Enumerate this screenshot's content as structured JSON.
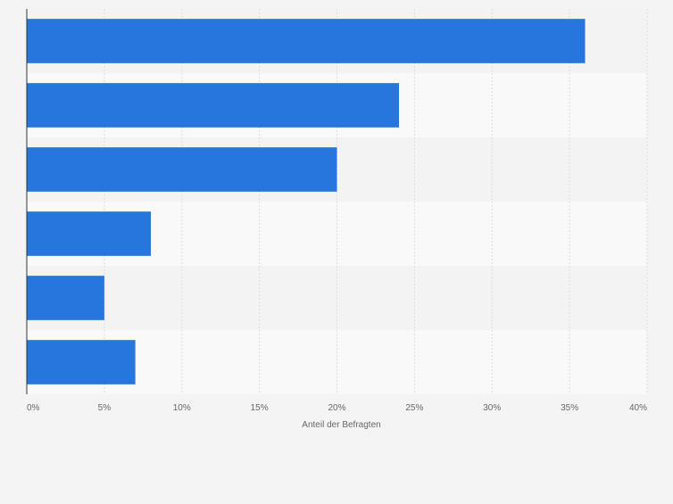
{
  "chart_data": {
    "type": "bar",
    "orientation": "horizontal",
    "categories": [
      "",
      "",
      "",
      "",
      "",
      ""
    ],
    "values": [
      36,
      24,
      20,
      8,
      5,
      7
    ],
    "xlim": [
      0,
      40
    ],
    "xticks": [
      0,
      5,
      10,
      15,
      20,
      25,
      30,
      35,
      40
    ],
    "tick_labels": [
      "0%",
      "5%",
      "10%",
      "15%",
      "20%",
      "25%",
      "30%",
      "35%",
      "40%"
    ],
    "xlabel": "Anteil der Befragten",
    "grid": true,
    "legend": "none",
    "colors": {
      "bar": "#2776dd",
      "band_odd": "#f3f3f3",
      "band_even": "#f9f9f9",
      "grid": "#dcdcdc",
      "axis": "#333333",
      "text": "#666666"
    }
  }
}
